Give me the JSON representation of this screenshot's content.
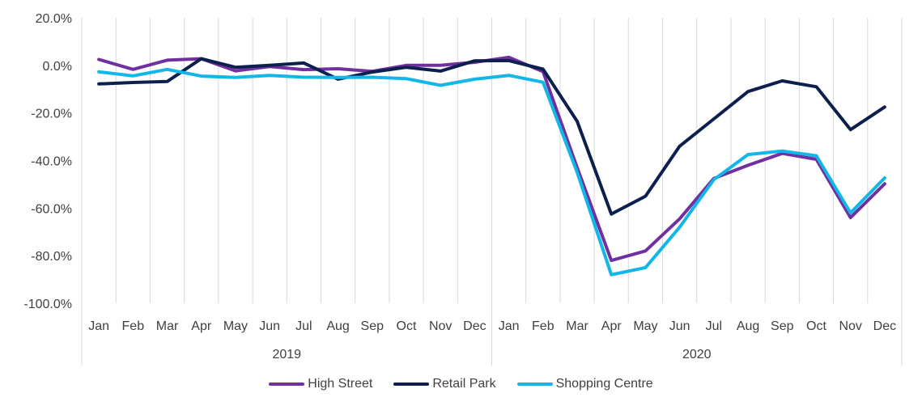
{
  "chart_data": {
    "type": "line",
    "title": "",
    "xlabel": "",
    "ylabel": "",
    "ylim": [
      -100,
      20
    ],
    "yticks": [
      20,
      0,
      -20,
      -40,
      -60,
      -80,
      -100
    ],
    "ytick_labels": [
      "20.0%",
      "0.0%",
      "-20.0%",
      "-40.0%",
      "-60.0%",
      "-80.0%",
      "-100.0%"
    ],
    "grid": "vertical gridlines at category boundaries",
    "legend_position": "bottom",
    "categories": [
      "Jan",
      "Feb",
      "Mar",
      "Apr",
      "May",
      "Jun",
      "Jul",
      "Aug",
      "Sep",
      "Oct",
      "Nov",
      "Dec",
      "Jan",
      "Feb",
      "Mar",
      "Apr",
      "May",
      "Jun",
      "Jul",
      "Aug",
      "Sep",
      "Oct",
      "Nov",
      "Dec"
    ],
    "groups": [
      {
        "label": "2019",
        "span": 12
      },
      {
        "label": "2020",
        "span": 12
      }
    ],
    "series": [
      {
        "name": "High Street",
        "color": "#7030a0",
        "values": [
          2.5,
          -1.7,
          2.2,
          2.8,
          -2.3,
          -0.5,
          -1.8,
          -1.4,
          -2.5,
          0.0,
          0.0,
          1.3,
          3.4,
          -2.6,
          -43.0,
          -82.0,
          -78.0,
          -64.5,
          -47.5,
          -42.0,
          -37.0,
          -39.5,
          -64.0,
          -49.8
        ]
      },
      {
        "name": "Retail Park",
        "color": "#0d1f4d",
        "values": [
          -7.8,
          -7.2,
          -6.8,
          2.8,
          -0.8,
          0.0,
          1.0,
          -5.8,
          -2.8,
          -0.8,
          -2.4,
          1.9,
          2.0,
          -1.6,
          -23.5,
          -62.5,
          -55.0,
          -34.0,
          -22.5,
          -11.0,
          -6.5,
          -9.0,
          -27.0,
          -17.5
        ]
      },
      {
        "name": "Shopping Centre",
        "color": "#12b7e8",
        "values": [
          -2.7,
          -4.4,
          -1.7,
          -4.5,
          -5.1,
          -4.2,
          -5.0,
          -5.1,
          -5.0,
          -5.6,
          -8.4,
          -5.8,
          -4.2,
          -7.1,
          -45.0,
          -88.0,
          -85.0,
          -68.0,
          -48.0,
          -37.5,
          -36.0,
          -38.0,
          -62.0,
          -47.3
        ]
      }
    ]
  }
}
